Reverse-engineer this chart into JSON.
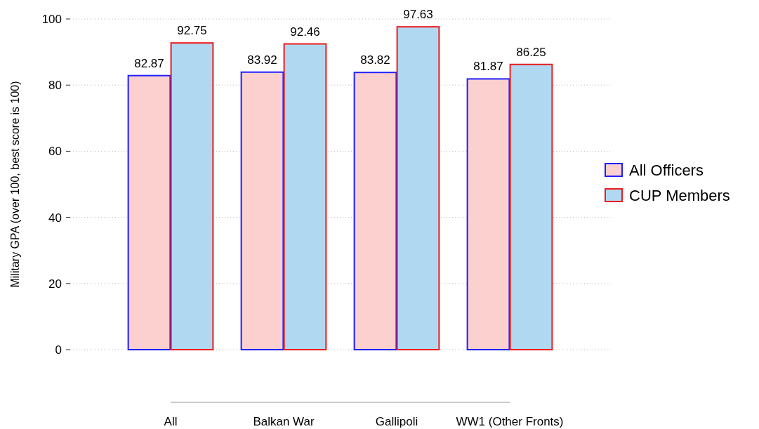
{
  "chart_data": {
    "type": "bar",
    "ylabel": "Military GPA (over 100, best score is 100)",
    "categories": [
      "All",
      "Balkan War",
      "Gallipoli",
      "WW1 (Other Fronts)"
    ],
    "series": [
      {
        "name": "All Officers",
        "color": "#fdd0d0",
        "values": [
          82.87,
          83.92,
          83.82,
          81.87
        ]
      },
      {
        "name": "CUP Members",
        "color": "#b0d8f0",
        "values": [
          92.75,
          92.46,
          97.63,
          86.25
        ]
      }
    ],
    "ylim": [
      0,
      100
    ],
    "yticks": [
      0,
      20,
      40,
      60,
      80,
      100
    ],
    "grid": "y",
    "legend": "right",
    "data_labels": true
  }
}
